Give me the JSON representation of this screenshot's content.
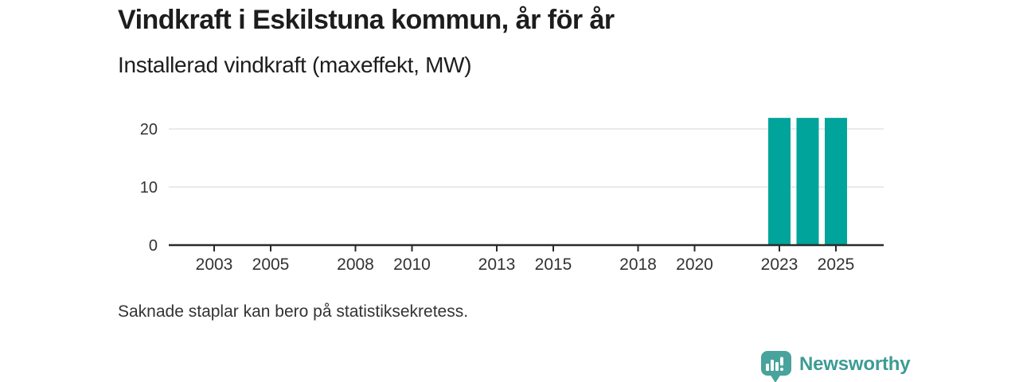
{
  "header": {
    "title": "Vindkraft i Eskilstuna kommun, år för år",
    "subtitle": "Installerad vindkraft (maxeffekt, MW)"
  },
  "footnote": "Saknade staplar kan bero på statistiksekretess.",
  "branding": {
    "name": "Newsworthy",
    "icon": "newsworthy-chart-bubble-icon"
  },
  "colors": {
    "bar": "#00a49a",
    "grid": "#e4e4e4",
    "axis": "#2a2a2a",
    "text": "#1d1d1d",
    "muted-text": "#333333",
    "tick-text": "#333333",
    "brand": "#3d9b94",
    "brand-icon": "#48a39c"
  },
  "chart_data": {
    "type": "bar",
    "title": "Vindkraft i Eskilstuna kommun, år för år",
    "ylabel": "Installerad vindkraft (maxeffekt, MW)",
    "xlabel": "",
    "unit": "MW",
    "x_ticks": [
      2003,
      2005,
      2008,
      2010,
      2013,
      2015,
      2018,
      2020,
      2023,
      2025
    ],
    "y_ticks": [
      0,
      10,
      20
    ],
    "ylim": [
      0,
      22
    ],
    "x_range_years": [
      2002,
      2026
    ],
    "grid": "horizontal",
    "legend": "none",
    "bars": [
      {
        "year": 2023,
        "value": 21.9
      },
      {
        "year": 2024,
        "value": 21.9
      },
      {
        "year": 2025,
        "value": 21.9
      }
    ],
    "missing_bars_note": "Saknade staplar kan bero på statistiksekretess."
  }
}
